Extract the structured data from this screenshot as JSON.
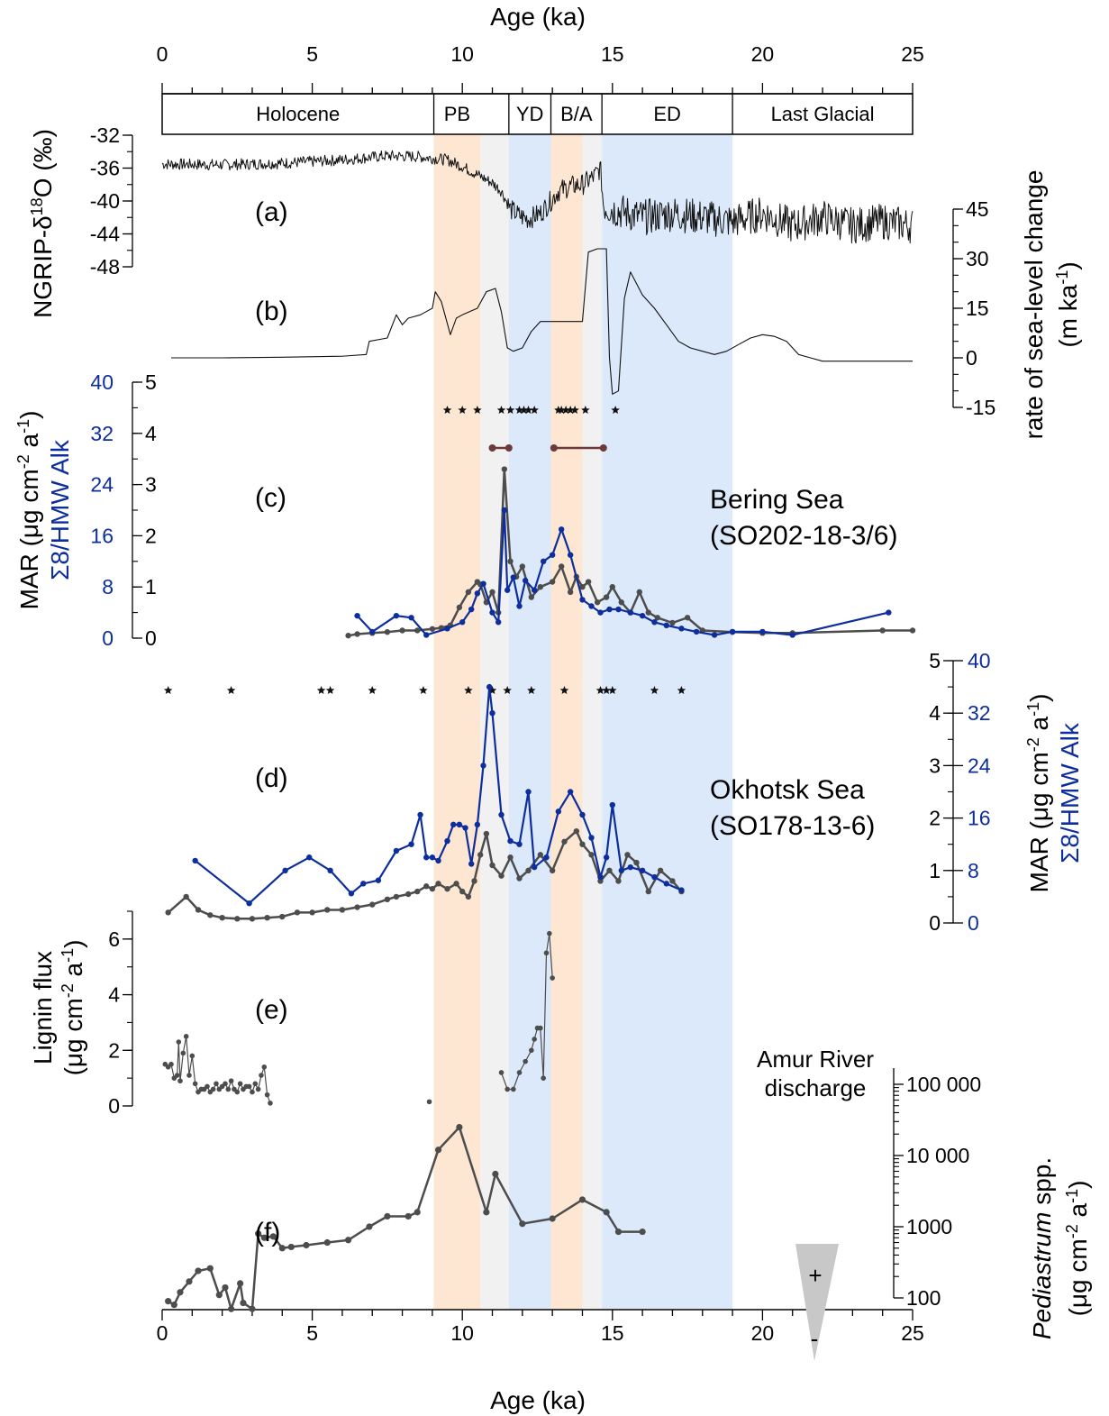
{
  "colors": {
    "band_orange": "#fde7d3",
    "band_gray": "#f1f1f1",
    "band_blue": "#dce9fb",
    "series_gray": "#4d4d4d",
    "series_blue": "#0d2e9c",
    "series_brown": "#6b3a3a",
    "triangle": "#c8c8c8"
  },
  "chart_data": {
    "type": "line",
    "title": "",
    "xlabel": "Age (ka)",
    "xlim": [
      0,
      25
    ],
    "x_ticks": [
      "0",
      "5",
      "10",
      "15",
      "20",
      "25"
    ],
    "periods": [
      {
        "label": "Holocene",
        "start": 0,
        "end": 9.05
      },
      {
        "label": "PB",
        "start": 9.05,
        "end": 10.6
      },
      {
        "label": "YD",
        "start": 11.55,
        "end": 12.95
      },
      {
        "label": "B/A",
        "start": 12.95,
        "end": 14.65
      },
      {
        "label": "ED",
        "start": 14.65,
        "end": 19.0
      },
      {
        "label": "Last Glacial",
        "start": 19.0,
        "end": 25
      }
    ],
    "bands": [
      {
        "color": "orange",
        "start": 9.05,
        "end": 10.6
      },
      {
        "color": "gray",
        "start": 10.6,
        "end": 11.55
      },
      {
        "color": "blue",
        "start": 11.55,
        "end": 12.95
      },
      {
        "color": "orange",
        "start": 12.95,
        "end": 14.0
      },
      {
        "color": "gray",
        "start": 14.0,
        "end": 14.65
      },
      {
        "color": "blue",
        "start": 14.65,
        "end": 19.0
      }
    ],
    "panels": [
      {
        "id": "a",
        "label": "(a)",
        "ylabel": "NGRIP-δ18O (‰)",
        "ylim": [
          -48,
          -32
        ],
        "y_ticks": [
          "-32",
          "-36",
          "-40",
          "-44",
          "-48"
        ],
        "series": [
          {
            "name": "NGRIP δ18O",
            "x": [
              0.0,
              2.0,
              4.0,
              6.0,
              7.5,
              8.5,
              9.0,
              9.5,
              10.0,
              10.5,
              11.0,
              11.3,
              11.6,
              11.9,
              12.2,
              12.6,
              12.9,
              13.2,
              13.6,
              14.0,
              14.4,
              14.6,
              14.7,
              15.0,
              16.0,
              17.0,
              18.0,
              19.0,
              20.0,
              21.0,
              22.0,
              23.0,
              24.0,
              25.0
            ],
            "y": [
              -35.5,
              -35.6,
              -35.4,
              -35.0,
              -34.5,
              -34.6,
              -34.8,
              -35.0,
              -35.8,
              -36.8,
              -37.8,
              -38.8,
              -41.0,
              -41.8,
              -42.2,
              -41.5,
              -40.2,
              -38.8,
              -38.2,
              -38.0,
              -37.0,
              -36.0,
              -40.5,
              -41.0,
              -42.0,
              -41.5,
              -42.0,
              -42.5,
              -41.5,
              -43.0,
              -42.0,
              -43.0,
              -42.5,
              -43.0
            ]
          }
        ]
      },
      {
        "id": "b",
        "label": "(b)",
        "ylabel": "rate of sea-level change (m ka-1)",
        "ylim": [
          -15,
          45
        ],
        "y_ticks": [
          "45",
          "30",
          "15",
          "0",
          "-15"
        ],
        "series": [
          {
            "name": "rate of sea-level change",
            "x": [
              0.3,
              2.0,
              4.0,
              6.0,
              6.8,
              6.9,
              7.5,
              7.8,
              8.0,
              8.2,
              8.6,
              8.8,
              9.0,
              9.1,
              9.3,
              9.6,
              9.8,
              10.0,
              10.5,
              10.8,
              11.1,
              11.3,
              11.5,
              11.7,
              12.0,
              12.3,
              12.6,
              12.9,
              13.2,
              13.5,
              13.8,
              14.0,
              14.2,
              14.5,
              14.8,
              14.9,
              15.0,
              15.2,
              15.4,
              15.6,
              16.0,
              16.4,
              16.8,
              17.2,
              17.6,
              18.0,
              18.4,
              18.8,
              19.2,
              19.6,
              20.0,
              20.4,
              20.8,
              21.2,
              21.6,
              22.0,
              23.0,
              24.0,
              25.0
            ],
            "y": [
              0,
              0,
              0.2,
              0.5,
              1,
              5,
              6,
              13,
              10,
              12,
              13,
              14,
              15,
              20,
              17,
              7,
              12,
              13,
              15,
              20,
              21,
              14,
              3,
              2,
              3,
              8,
              11,
              11,
              11,
              11,
              11,
              11,
              32,
              33,
              33,
              0,
              -11,
              -10,
              18,
              26,
              19,
              15,
              10,
              5,
              3,
              2,
              1,
              2,
              4,
              6,
              7,
              6.5,
              5,
              1,
              0,
              -1,
              -1,
              -1,
              -1
            ]
          }
        ]
      },
      {
        "id": "c",
        "label": "(c)",
        "site": "Bering Sea",
        "core": "(SO202-18-3/6)",
        "ylabel_mar": "MAR (μg cm-2 a-1)",
        "ylabel_ratio": "Σ8/HMW Alk",
        "ylim_mar": [
          0,
          5
        ],
        "ylim_ratio": [
          0,
          40
        ],
        "y_ticks_mar": [
          "5",
          "4",
          "3",
          "2",
          "1",
          "0"
        ],
        "y_ticks_ratio": [
          "40",
          "32",
          "24",
          "16",
          "8",
          "0"
        ],
        "date_markers": [
          9.5,
          10.0,
          10.5,
          11.3,
          11.6,
          11.9,
          12.05,
          12.2,
          12.4,
          13.2,
          13.3,
          13.45,
          13.6,
          13.75,
          14.1,
          15.1
        ],
        "intervals": [
          [
            11.0,
            11.55
          ],
          [
            13.05,
            14.7
          ]
        ],
        "series": [
          {
            "name": "MAR",
            "color": "gray",
            "x": [
              6.2,
              6.5,
              7.0,
              7.5,
              8.0,
              8.5,
              9.0,
              9.3,
              9.6,
              9.9,
              10.2,
              10.5,
              10.6,
              10.8,
              11.0,
              11.2,
              11.4,
              11.6,
              11.8,
              12.0,
              12.3,
              12.6,
              13.0,
              13.3,
              13.6,
              13.8,
              14.0,
              14.2,
              14.5,
              14.8,
              15.0,
              15.3,
              15.6,
              15.9,
              16.2,
              16.5,
              17.0,
              17.5,
              18.0,
              19.0,
              20.0,
              21.0,
              24.0,
              25.0
            ],
            "y": [
              0.05,
              0.08,
              0.1,
              0.12,
              0.15,
              0.15,
              0.18,
              0.2,
              0.25,
              0.6,
              0.9,
              1.1,
              1.05,
              0.7,
              0.9,
              0.5,
              3.3,
              1.5,
              1.2,
              1.4,
              0.8,
              1.0,
              1.1,
              1.4,
              0.9,
              1.2,
              1.0,
              1.1,
              0.7,
              0.8,
              1.0,
              0.7,
              0.5,
              0.9,
              0.5,
              0.4,
              0.3,
              0.4,
              0.15,
              0.12,
              0.1,
              0.1,
              0.15,
              0.15
            ]
          },
          {
            "name": "Σ8/HMW Alk",
            "color": "blue",
            "x": [
              6.5,
              7.0,
              7.8,
              8.3,
              8.8,
              9.5,
              10.0,
              10.3,
              10.5,
              10.7,
              11.0,
              11.2,
              11.4,
              11.5,
              11.7,
              11.9,
              12.1,
              12.4,
              12.7,
              13.0,
              13.3,
              13.6,
              14.0,
              14.3,
              14.6,
              14.9,
              15.2,
              15.6,
              16.0,
              16.4,
              16.8,
              17.3,
              17.8,
              18.4,
              19.0,
              20.0,
              21.0,
              24.2
            ],
            "y": [
              3.5,
              1.0,
              3.5,
              3.2,
              0.5,
              1.5,
              2.5,
              4.5,
              7.0,
              8.5,
              4.0,
              2.5,
              20.0,
              7.5,
              9.5,
              5.0,
              9.0,
              7.5,
              12.0,
              13.0,
              17.0,
              13.0,
              6.0,
              5.0,
              4.0,
              4.5,
              4.5,
              4.0,
              3.5,
              2.5,
              2.0,
              1.5,
              1.0,
              0.5,
              1.0,
              1.0,
              0.5,
              4.0
            ]
          }
        ]
      },
      {
        "id": "d",
        "label": "(d)",
        "site": "Okhotsk Sea",
        "core": "(SO178-13-6)",
        "ylabel_mar": "MAR (μg cm-2 a-1)",
        "ylabel_ratio": "Σ8/HMW Alk",
        "ylim_mar": [
          0,
          5
        ],
        "ylim_ratio": [
          0,
          40
        ],
        "y_ticks_mar": [
          "5",
          "4",
          "3",
          "2",
          "1",
          "0"
        ],
        "y_ticks_ratio": [
          "40",
          "32",
          "24",
          "16",
          "8",
          "0"
        ],
        "date_markers": [
          0.2,
          2.3,
          5.3,
          5.6,
          7.0,
          8.7,
          10.2,
          11.0,
          11.5,
          12.3,
          13.4,
          14.6,
          14.8,
          15.0,
          16.4,
          17.3
        ],
        "series": [
          {
            "name": "MAR",
            "color": "gray",
            "x": [
              0.2,
              0.8,
              1.2,
              1.6,
              2.0,
              2.5,
              3.0,
              3.5,
              4.0,
              4.5,
              5.0,
              5.5,
              6.0,
              6.5,
              7.0,
              7.5,
              7.8,
              8.2,
              8.5,
              8.8,
              9.0,
              9.2,
              9.5,
              9.8,
              10.0,
              10.2,
              10.4,
              10.6,
              10.8,
              11.0,
              11.3,
              11.6,
              11.9,
              12.2,
              12.6,
              13.0,
              13.4,
              13.8,
              14.0,
              14.3,
              14.6,
              14.9,
              15.2,
              15.5,
              15.8,
              16.2,
              16.6,
              17.0,
              17.3
            ],
            "y": [
              0.2,
              0.5,
              0.25,
              0.15,
              0.1,
              0.08,
              0.08,
              0.1,
              0.12,
              0.2,
              0.2,
              0.25,
              0.25,
              0.3,
              0.35,
              0.45,
              0.5,
              0.55,
              0.6,
              0.7,
              0.65,
              0.75,
              0.65,
              0.75,
              0.6,
              0.5,
              0.8,
              1.3,
              1.7,
              1.1,
              0.9,
              1.25,
              0.85,
              1.0,
              1.3,
              1.0,
              1.55,
              1.75,
              1.5,
              1.3,
              0.8,
              1.0,
              0.8,
              1.3,
              1.15,
              0.6,
              1.0,
              0.8,
              0.6
            ]
          },
          {
            "name": "Σ8/HMW Alk",
            "color": "blue",
            "x": [
              1.1,
              2.9,
              4.1,
              4.9,
              5.6,
              6.3,
              6.7,
              7.2,
              7.8,
              8.3,
              8.6,
              8.8,
              9.0,
              9.2,
              9.5,
              9.7,
              9.9,
              10.1,
              10.3,
              10.5,
              10.7,
              10.9,
              11.0,
              11.3,
              11.6,
              11.9,
              12.2,
              12.4,
              12.8,
              13.2,
              13.6,
              14.0,
              14.3,
              14.6,
              14.8,
              15.0,
              15.3,
              15.6,
              16.0,
              16.4,
              16.8,
              17.3
            ],
            "y": [
              9.5,
              3.0,
              8.0,
              10.0,
              8.0,
              4.5,
              6.0,
              6.5,
              11.0,
              12.0,
              16.5,
              10.0,
              10.0,
              9.5,
              12.5,
              15.0,
              15.0,
              14.5,
              9.0,
              15.0,
              24.0,
              36.0,
              32.0,
              16.5,
              12.5,
              12.0,
              20.0,
              8.5,
              10.0,
              17.0,
              20.0,
              16.5,
              13.0,
              7.0,
              10.0,
              18.0,
              8.0,
              8.5,
              8.0,
              7.0,
              6.0,
              5.0
            ]
          }
        ]
      },
      {
        "id": "e",
        "label": "(e)",
        "ylabel": "Lignin flux (μg cm-2 a-1)",
        "ylim": [
          0,
          7
        ],
        "y_ticks": [
          "6",
          "4",
          "2",
          "0"
        ],
        "series": [
          {
            "name": "Lignin flux (Holocene segment)",
            "x": [
              0.1,
              0.2,
              0.3,
              0.4,
              0.5,
              0.55,
              0.6,
              0.7,
              0.8,
              0.9,
              1.0,
              1.1,
              1.2,
              1.3,
              1.4,
              1.5,
              1.6,
              1.7,
              1.8,
              1.9,
              2.0,
              2.1,
              2.2,
              2.3,
              2.4,
              2.5,
              2.6,
              2.7,
              2.8,
              2.9,
              3.0,
              3.1,
              3.2,
              3.3,
              3.4,
              3.5,
              3.6
            ],
            "y": [
              1.5,
              1.4,
              1.5,
              1.0,
              1.1,
              2.3,
              0.9,
              1.9,
              2.5,
              1.1,
              1.8,
              0.8,
              0.5,
              0.6,
              0.6,
              0.7,
              0.5,
              0.6,
              0.8,
              0.6,
              0.7,
              0.8,
              0.6,
              0.9,
              0.6,
              0.5,
              0.8,
              0.6,
              0.7,
              0.7,
              0.5,
              0.8,
              0.6,
              1.1,
              1.4,
              0.4,
              0.1
            ]
          },
          {
            "name": "Lignin flux (deglacial segment)",
            "x": [
              11.3,
              11.5,
              11.7,
              11.9,
              12.1,
              12.3,
              12.4,
              12.5,
              12.6,
              12.7,
              12.8,
              12.9,
              13.0
            ],
            "y": [
              1.2,
              0.6,
              0.6,
              1.2,
              1.6,
              2.0,
              2.4,
              2.8,
              2.8,
              1.0,
              5.5,
              6.2,
              4.6
            ]
          },
          {
            "name": "Lignin flux (single point)",
            "x": [
              8.9
            ],
            "y": [
              0.15
            ]
          }
        ]
      },
      {
        "id": "f",
        "label": "(f)",
        "ylabel": "Pediastrum spp. (μg cm-2 a-1)",
        "yscale": "log",
        "ylim": [
          100,
          100000
        ],
        "y_ticks": [
          "100",
          "1000",
          "10 000",
          "100 000"
        ],
        "annotation": {
          "title_line1": "Amur River",
          "title_line2": "discharge",
          "plus": "+",
          "minus": "-"
        },
        "series": [
          {
            "name": "Pediastrum spp.",
            "x": [
              0.2,
              0.4,
              0.6,
              0.9,
              1.2,
              1.6,
              1.9,
              2.1,
              2.3,
              2.6,
              2.7,
              3.0,
              3.2,
              3.4,
              3.7,
              4.0,
              4.3,
              4.8,
              5.5,
              6.2,
              6.9,
              7.5,
              8.2,
              8.5,
              9.2,
              9.9,
              10.8,
              11.1,
              12.0,
              13.0,
              14.0,
              14.8,
              15.2,
              16.0
            ],
            "y": [
              90,
              80,
              120,
              170,
              240,
              260,
              110,
              140,
              70,
              160,
              85,
              70,
              800,
              700,
              730,
              500,
              520,
              550,
              600,
              650,
              1000,
              1400,
              1400,
              1600,
              12000,
              25000,
              1600,
              5500,
              1100,
              1300,
              2400,
              1600,
              850,
              850
            ]
          }
        ]
      }
    ]
  }
}
